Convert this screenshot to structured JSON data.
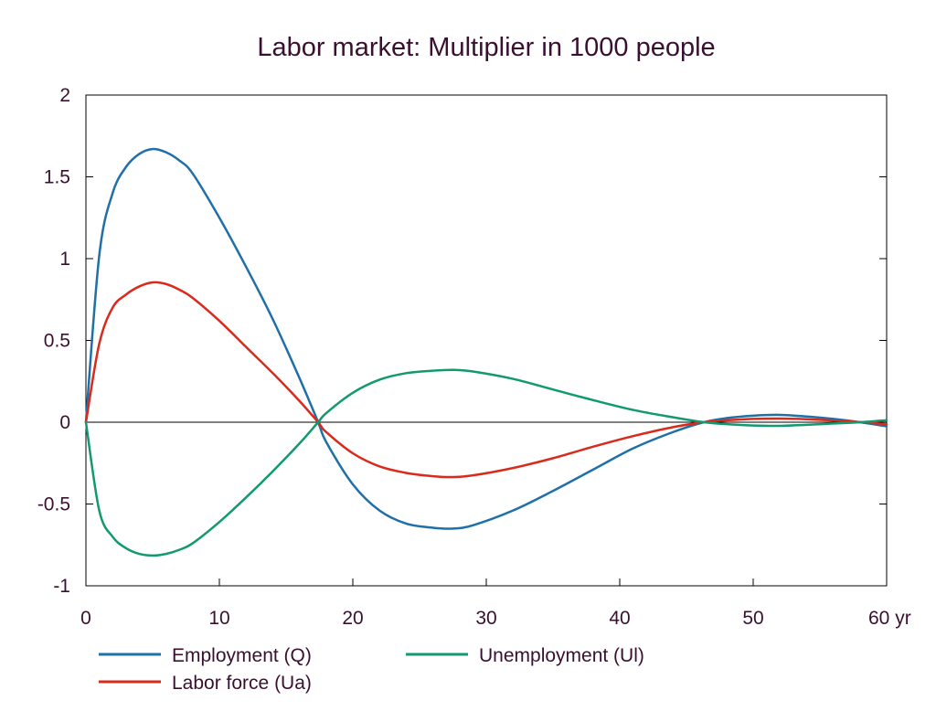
{
  "chart_data": {
    "type": "line",
    "title": "Labor market: Multiplier in 1000 people",
    "xlabel": "",
    "ylabel": "",
    "xlim": [
      0,
      60
    ],
    "ylim": [
      -1,
      2
    ],
    "x_ticks": [
      0,
      10,
      20,
      30,
      40,
      50,
      60
    ],
    "x_tick_labels": [
      "0",
      "10",
      "20",
      "30",
      "40",
      "50",
      "60 yr"
    ],
    "y_ticks": [
      -1,
      -0.5,
      0,
      0.5,
      1,
      1.5,
      2
    ],
    "y_tick_labels": [
      "-1",
      "-0.5",
      "0",
      "0.5",
      "1",
      "1.5",
      "2"
    ],
    "grid": false,
    "zero_line": true,
    "legend_position": "bottom",
    "x": [
      0,
      1,
      2,
      3,
      4,
      5,
      6,
      7,
      8,
      10,
      12,
      14,
      16,
      17.4,
      18,
      20,
      22,
      24,
      26,
      27.5,
      29,
      32,
      35,
      38,
      41,
      44,
      46.3,
      48,
      50,
      52,
      54,
      56,
      58,
      60
    ],
    "series": [
      {
        "name": "Employment (Q)",
        "color": "#1f6fa8",
        "values": [
          0,
          1.02,
          1.4,
          1.56,
          1.64,
          1.67,
          1.65,
          1.6,
          1.52,
          1.25,
          0.95,
          0.63,
          0.27,
          0,
          -0.12,
          -0.38,
          -0.54,
          -0.62,
          -0.645,
          -0.65,
          -0.63,
          -0.54,
          -0.42,
          -0.29,
          -0.16,
          -0.06,
          0,
          0.025,
          0.04,
          0.045,
          0.035,
          0.02,
          0,
          -0.025
        ]
      },
      {
        "name": "Labor force (Ua)",
        "color": "#d92a1c",
        "values": [
          0,
          0.48,
          0.7,
          0.78,
          0.83,
          0.855,
          0.845,
          0.81,
          0.76,
          0.62,
          0.46,
          0.3,
          0.13,
          0,
          -0.06,
          -0.19,
          -0.27,
          -0.31,
          -0.33,
          -0.335,
          -0.325,
          -0.28,
          -0.22,
          -0.15,
          -0.085,
          -0.03,
          0,
          0.012,
          0.02,
          0.022,
          0.018,
          0.01,
          0,
          -0.012
        ]
      },
      {
        "name": "Unemployment (Ul)",
        "color": "#129970",
        "values": [
          0,
          -0.54,
          -0.7,
          -0.77,
          -0.805,
          -0.815,
          -0.805,
          -0.78,
          -0.74,
          -0.61,
          -0.46,
          -0.3,
          -0.13,
          0,
          0.055,
          0.18,
          0.26,
          0.3,
          0.315,
          0.32,
          0.31,
          0.265,
          0.2,
          0.135,
          0.075,
          0.03,
          0,
          -0.012,
          -0.02,
          -0.022,
          -0.016,
          -0.008,
          0,
          0.012
        ]
      }
    ]
  }
}
